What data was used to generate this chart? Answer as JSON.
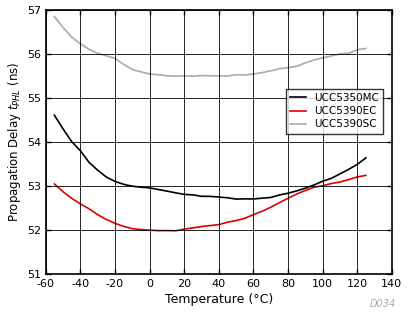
{
  "xlabel": "Temperature (°C)",
  "xlim": [
    -60,
    140
  ],
  "ylim": [
    51,
    57
  ],
  "xticks": [
    -60,
    -40,
    -20,
    0,
    20,
    40,
    60,
    80,
    100,
    120,
    140
  ],
  "yticks": [
    51,
    52,
    53,
    54,
    55,
    56,
    57
  ],
  "annotation": "D034",
  "legend": [
    "UCC5350MC",
    "UCC5390EC",
    "UCC5390SC"
  ],
  "color_black": "#000000",
  "color_red": "#dd0000",
  "color_gray": "#aaaaaa",
  "UCC5350MC_x": [
    -55,
    -50,
    -45,
    -40,
    -35,
    -30,
    -25,
    -20,
    -15,
    -10,
    -5,
    0,
    5,
    10,
    15,
    20,
    25,
    30,
    35,
    40,
    45,
    50,
    55,
    60,
    65,
    70,
    75,
    80,
    85,
    90,
    95,
    100,
    105,
    110,
    115,
    120,
    125
  ],
  "UCC5350MC_y": [
    54.6,
    54.3,
    54.0,
    53.8,
    53.55,
    53.35,
    53.2,
    53.1,
    53.05,
    53.0,
    52.98,
    52.95,
    52.92,
    52.88,
    52.85,
    52.82,
    52.8,
    52.78,
    52.76,
    52.75,
    52.73,
    52.71,
    52.7,
    52.7,
    52.72,
    52.75,
    52.8,
    52.85,
    52.9,
    52.95,
    53.02,
    53.1,
    53.18,
    53.28,
    53.38,
    53.5,
    53.65
  ],
  "UCC5390EC_x": [
    -55,
    -50,
    -45,
    -40,
    -35,
    -30,
    -25,
    -20,
    -15,
    -10,
    -5,
    0,
    5,
    10,
    15,
    20,
    25,
    30,
    35,
    40,
    45,
    50,
    55,
    60,
    65,
    70,
    75,
    80,
    85,
    90,
    95,
    100,
    105,
    110,
    115,
    120,
    125
  ],
  "UCC5390EC_y": [
    53.05,
    52.88,
    52.72,
    52.6,
    52.48,
    52.35,
    52.25,
    52.15,
    52.08,
    52.04,
    52.02,
    52.0,
    52.0,
    52.0,
    52.0,
    52.02,
    52.05,
    52.08,
    52.1,
    52.13,
    52.18,
    52.23,
    52.28,
    52.35,
    52.43,
    52.52,
    52.62,
    52.72,
    52.82,
    52.9,
    52.98,
    53.02,
    53.06,
    53.1,
    53.15,
    53.2,
    53.25
  ],
  "UCC5390SC_x": [
    -55,
    -50,
    -45,
    -40,
    -35,
    -30,
    -25,
    -20,
    -15,
    -10,
    -5,
    0,
    5,
    10,
    15,
    20,
    25,
    30,
    35,
    40,
    45,
    50,
    55,
    60,
    65,
    70,
    75,
    80,
    85,
    90,
    95,
    100,
    105,
    110,
    115,
    120,
    125
  ],
  "UCC5390SC_y": [
    56.85,
    56.6,
    56.38,
    56.22,
    56.1,
    56.0,
    55.95,
    55.9,
    55.75,
    55.65,
    55.6,
    55.55,
    55.52,
    55.5,
    55.5,
    55.5,
    55.5,
    55.5,
    55.5,
    55.5,
    55.5,
    55.52,
    55.52,
    55.55,
    55.58,
    55.6,
    55.65,
    55.68,
    55.72,
    55.78,
    55.85,
    55.9,
    55.95,
    56.0,
    56.02,
    56.08,
    56.12
  ]
}
